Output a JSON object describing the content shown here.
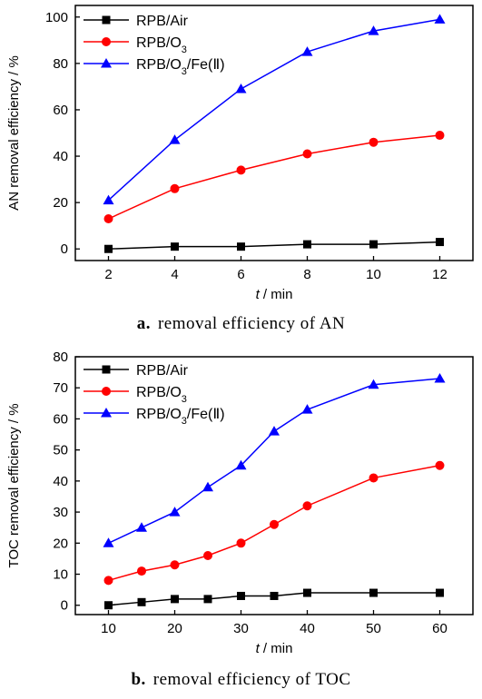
{
  "chart_data": [
    {
      "type": "line",
      "xlabel_var": "t",
      "xlabel_unit": " / min",
      "ylabel": "AN removal efficiency / %",
      "x": [
        2,
        4,
        6,
        8,
        10,
        12
      ],
      "xticks": [
        2,
        4,
        6,
        8,
        10,
        12
      ],
      "xlim": [
        1,
        13
      ],
      "yticks": [
        0,
        20,
        40,
        60,
        80,
        100
      ],
      "ylim": [
        -5,
        105
      ],
      "legend_position": "top-left",
      "series": [
        {
          "name": "RPB/Air",
          "marker": "square",
          "color": "#000000",
          "values": [
            0,
            1,
            1,
            2,
            2,
            3
          ]
        },
        {
          "name": "RPB/O3",
          "marker": "circle",
          "color": "#ff0000",
          "values": [
            13,
            26,
            34,
            41,
            46,
            49
          ]
        },
        {
          "name": "RPB/O3/Fe(Ⅱ)",
          "marker": "triangle",
          "color": "#0000ff",
          "values": [
            21,
            47,
            69,
            85,
            94,
            99
          ]
        }
      ],
      "caption_letter": "a.",
      "caption_text": "removal efficiency of AN"
    },
    {
      "type": "line",
      "xlabel_var": "t",
      "xlabel_unit": " / min",
      "ylabel": "TOC removal efficiency / %",
      "x": [
        10,
        15,
        20,
        25,
        30,
        35,
        40,
        50,
        60
      ],
      "xticks": [
        10,
        20,
        30,
        40,
        50,
        60
      ],
      "xlim": [
        5,
        65
      ],
      "yticks": [
        0,
        10,
        20,
        30,
        40,
        50,
        60,
        70,
        80
      ],
      "ylim": [
        -3,
        80
      ],
      "legend_position": "top-left",
      "series": [
        {
          "name": "RPB/Air",
          "marker": "square",
          "color": "#000000",
          "values": [
            0,
            1,
            2,
            2,
            3,
            3,
            4,
            4,
            4
          ]
        },
        {
          "name": "RPB/O3",
          "marker": "circle",
          "color": "#ff0000",
          "values": [
            8,
            11,
            13,
            16,
            20,
            26,
            32,
            41,
            45
          ]
        },
        {
          "name": "RPB/O3/Fe(Ⅱ)",
          "marker": "triangle",
          "color": "#0000ff",
          "values": [
            20,
            25,
            30,
            38,
            45,
            56,
            63,
            71,
            73
          ]
        }
      ],
      "caption_letter": "b.",
      "caption_text": "removal efficiency of TOC"
    }
  ]
}
